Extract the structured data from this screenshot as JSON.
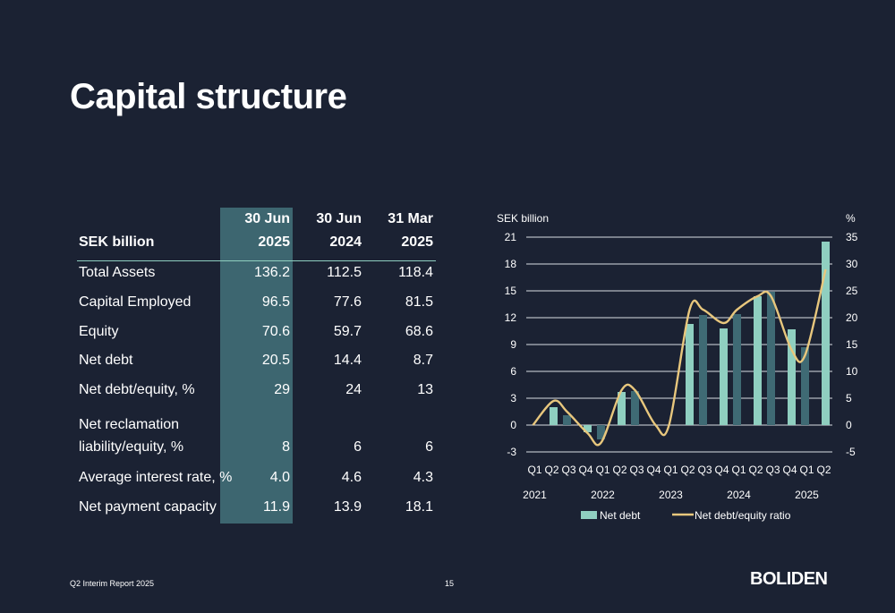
{
  "title": "Capital structure",
  "table": {
    "unit_label": "SEK billion",
    "columns": [
      {
        "line1": "30 Jun",
        "line2": "2025"
      },
      {
        "line1": "30 Jun",
        "line2": "2024"
      },
      {
        "line1": "31 Mar",
        "line2": "2025"
      }
    ],
    "rows": [
      {
        "label": "Total Assets",
        "values": [
          "136.2",
          "112.5",
          "118.4"
        ]
      },
      {
        "label": "Capital Employed",
        "values": [
          "96.5",
          "77.6",
          "81.5"
        ]
      },
      {
        "label": "Equity",
        "values": [
          "70.6",
          "59.7",
          "68.6"
        ]
      },
      {
        "label": "Net debt",
        "values": [
          "20.5",
          "14.4",
          "8.7"
        ]
      },
      {
        "label": "Net debt/equity, %",
        "values": [
          "29",
          "24",
          "13"
        ]
      },
      {
        "label": "Net reclamation",
        "label2": "liability/equity, %",
        "values": [
          "8",
          "6",
          "6"
        ]
      },
      {
        "label": "Average interest rate, %",
        "values": [
          "4.0",
          "4.6",
          "4.3"
        ]
      },
      {
        "label": "Net payment capacity",
        "values": [
          "11.9",
          "13.9",
          "18.1"
        ]
      }
    ]
  },
  "chart_data": {
    "type": "bar",
    "ylabel": "SEK billion",
    "y2label": "%",
    "ylim": [
      -3,
      21
    ],
    "yticks": [
      -3,
      0,
      3,
      6,
      9,
      12,
      15,
      18,
      21
    ],
    "y2lim": [
      -5,
      35
    ],
    "y2ticks": [
      -5,
      0,
      5,
      10,
      15,
      20,
      25,
      30,
      35
    ],
    "categories": [
      "Q1",
      "Q2",
      "Q3",
      "Q4",
      "Q1",
      "Q2",
      "Q3",
      "Q4",
      "Q1",
      "Q2",
      "Q3",
      "Q4",
      "Q1",
      "Q2",
      "Q3",
      "Q4",
      "Q1",
      "Q2"
    ],
    "years": [
      {
        "label": "2021",
        "at": 0
      },
      {
        "label": "2022",
        "at": 4
      },
      {
        "label": "2023",
        "at": 8
      },
      {
        "label": "2024",
        "at": 12
      },
      {
        "label": "2025",
        "at": 16
      }
    ],
    "series": [
      {
        "name": "Net debt",
        "kind": "bar",
        "values": [
          0,
          2.0,
          1.1,
          -0.8,
          -1.6,
          3.7,
          3.8,
          0,
          0,
          11.3,
          12.3,
          10.8,
          12.4,
          14.4,
          14.9,
          10.7,
          8.7,
          20.5
        ]
      },
      {
        "name": "Net debt/equity ratio",
        "kind": "line",
        "axis": "y2",
        "values": [
          0,
          4.5,
          2.5,
          -1.5,
          -3.3,
          6.5,
          6.5,
          0,
          0,
          21.5,
          21.5,
          19,
          21.5,
          24,
          24,
          14,
          13,
          29
        ]
      }
    ],
    "colors": {
      "bar_light": "#8fcfc0",
      "bar_dark": "#3f6a74",
      "line": "#e8c77d",
      "grid": "#d9dde3"
    },
    "legend": "bottom"
  },
  "footer": {
    "report": "Q2 Interim Report 2025",
    "page": "15",
    "logo": "BOLIDEN"
  }
}
